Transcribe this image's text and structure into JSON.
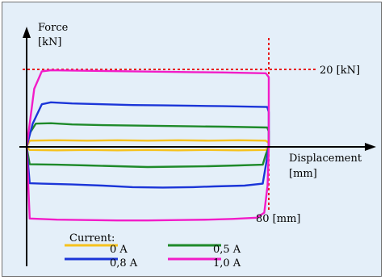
{
  "chart_data": {
    "type": "line",
    "title": "",
    "ylabel_line1": "Force",
    "ylabel_line2": "[kN]",
    "xlabel_line1": "Displacement",
    "xlabel_line2": "[mm]",
    "x_unit": "mm",
    "y_unit": "kN",
    "xlim": [
      0,
      82
    ],
    "ylim": [
      -25,
      26
    ],
    "reference_lines": {
      "force": {
        "value": 20,
        "label": "20 [kN]",
        "color": "#e8191c"
      },
      "displacement": {
        "value": 80,
        "label": "80 [mm]",
        "color": "#e8191c"
      }
    },
    "legend_title": "Current:",
    "series": [
      {
        "name": "0 A",
        "color": "#f6c21c",
        "upper": [
          [
            0,
            0
          ],
          [
            1,
            1.6
          ],
          [
            10,
            1.7
          ],
          [
            20,
            1.6
          ],
          [
            30,
            1.7
          ],
          [
            40,
            1.6
          ],
          [
            50,
            1.7
          ],
          [
            60,
            1.6
          ],
          [
            70,
            1.7
          ],
          [
            79,
            1.6
          ],
          [
            80,
            1.0
          ]
        ],
        "lower": [
          [
            80,
            0
          ],
          [
            79,
            -0.8
          ],
          [
            70,
            -0.9
          ],
          [
            60,
            -0.8
          ],
          [
            50,
            -0.9
          ],
          [
            40,
            -0.8
          ],
          [
            30,
            -0.9
          ],
          [
            20,
            -0.8
          ],
          [
            10,
            -0.9
          ],
          [
            1,
            -0.8
          ],
          [
            0,
            0
          ]
        ]
      },
      {
        "name": "0,5 A",
        "color": "#1e8a2a",
        "upper": [
          [
            0,
            0
          ],
          [
            1,
            3.5
          ],
          [
            3,
            6.0
          ],
          [
            8,
            6.1
          ],
          [
            15,
            5.8
          ],
          [
            25,
            5.6
          ],
          [
            35,
            5.5
          ],
          [
            45,
            5.4
          ],
          [
            55,
            5.3
          ],
          [
            65,
            5.2
          ],
          [
            79.5,
            5.0
          ],
          [
            80,
            4.0
          ]
        ],
        "lower": [
          [
            80,
            0
          ],
          [
            79,
            -2.0
          ],
          [
            78,
            -4.6
          ],
          [
            70,
            -4.8
          ],
          [
            60,
            -5.0
          ],
          [
            50,
            -5.1
          ],
          [
            40,
            -5.2
          ],
          [
            30,
            -5.0
          ],
          [
            20,
            -4.8
          ],
          [
            10,
            -4.6
          ],
          [
            1,
            -4.5
          ],
          [
            0,
            0
          ]
        ]
      },
      {
        "name": "0,8 A",
        "color": "#1b35d8",
        "upper": [
          [
            0,
            0
          ],
          [
            2,
            6
          ],
          [
            5,
            11.0
          ],
          [
            8,
            11.5
          ],
          [
            15,
            11.2
          ],
          [
            25,
            11.0
          ],
          [
            35,
            10.8
          ],
          [
            45,
            10.7
          ],
          [
            55,
            10.6
          ],
          [
            65,
            10.5
          ],
          [
            79.5,
            10.3
          ],
          [
            80,
            9.0
          ]
        ],
        "lower": [
          [
            80,
            0
          ],
          [
            79.2,
            -4
          ],
          [
            78,
            -9.5
          ],
          [
            72,
            -10.0
          ],
          [
            62,
            -10.2
          ],
          [
            55,
            -10.4
          ],
          [
            45,
            -10.5
          ],
          [
            35,
            -10.4
          ],
          [
            25,
            -10.0
          ],
          [
            15,
            -9.7
          ],
          [
            5,
            -9.5
          ],
          [
            1,
            -9.4
          ],
          [
            0,
            0
          ]
        ]
      },
      {
        "name": "1,0 A",
        "color": "#f21cc8",
        "upper": [
          [
            0,
            0
          ],
          [
            1,
            6
          ],
          [
            2.5,
            15
          ],
          [
            5,
            19.5
          ],
          [
            8,
            19.8
          ],
          [
            15,
            19.7
          ],
          [
            25,
            19.6
          ],
          [
            35,
            19.5
          ],
          [
            45,
            19.4
          ],
          [
            55,
            19.3
          ],
          [
            65,
            19.2
          ],
          [
            79,
            19.0
          ],
          [
            80,
            18.0
          ]
        ],
        "lower": [
          [
            80,
            0
          ],
          [
            79.6,
            -10
          ],
          [
            78.5,
            -17
          ],
          [
            76,
            -18.3
          ],
          [
            68,
            -18.6
          ],
          [
            60,
            -18.8
          ],
          [
            50,
            -18.9
          ],
          [
            40,
            -19.0
          ],
          [
            30,
            -19.0
          ],
          [
            20,
            -18.9
          ],
          [
            10,
            -18.8
          ],
          [
            1,
            -18.5
          ],
          [
            0,
            0
          ]
        ]
      }
    ]
  }
}
